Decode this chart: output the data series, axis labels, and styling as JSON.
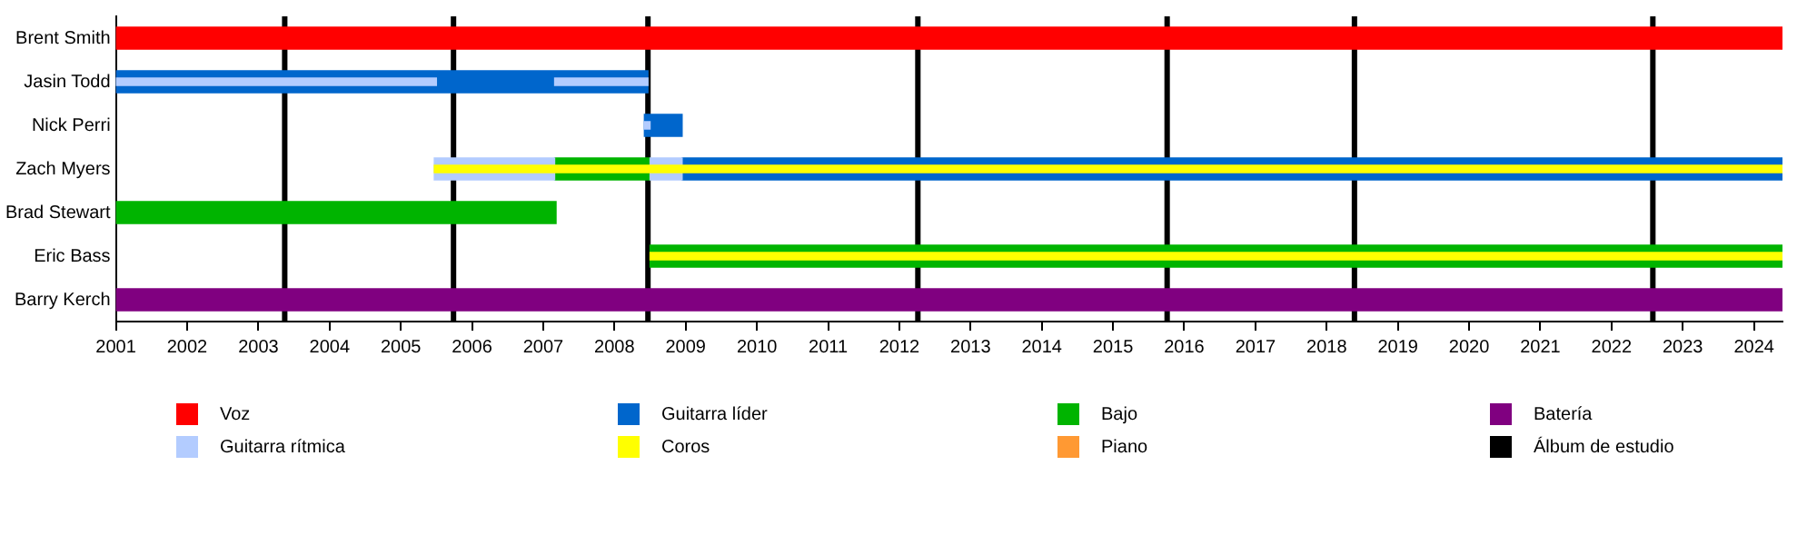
{
  "chart_data": {
    "type": "bar",
    "orientation": "horizontal",
    "categories": [
      "Brent Smith",
      "Jasin Todd",
      "Nick Perri",
      "Zach Myers",
      "Brad Stewart",
      "Eric Bass",
      "Barry Kerch"
    ],
    "series": [
      {
        "name": "Voz",
        "color": "#ff0000",
        "base": [
          2001,
          null,
          null,
          null,
          null,
          null,
          null
        ],
        "values": [
          23.4,
          null,
          null,
          null,
          null,
          null,
          null
        ]
      },
      {
        "name": "Guitarra líder",
        "color": "#0066cc",
        "base": [
          null,
          2001,
          2008.42,
          2008.95,
          null,
          null,
          null
        ],
        "values": [
          null,
          7.47,
          0.53,
          15.45,
          null,
          null,
          null
        ]
      },
      {
        "name": "Bajo",
        "color": "#00b400",
        "base": [
          null,
          null,
          null,
          2007.16,
          2001,
          2008.5,
          null
        ],
        "values": [
          null,
          null,
          null,
          1.34,
          6.18,
          15.9,
          null
        ]
      },
      {
        "name": "Batería",
        "color": "#800080",
        "base": [
          null,
          null,
          null,
          null,
          null,
          null,
          2001
        ],
        "values": [
          null,
          null,
          null,
          null,
          null,
          null,
          23.4
        ]
      },
      {
        "name": "Guitarra rítmica",
        "color": "#b3ccff",
        "base": [
          null,
          2001,
          2008.42,
          2005.47,
          null,
          null,
          null
        ],
        "values": [
          null,
          4.5,
          0.08,
          1.69,
          null,
          null,
          null
        ]
      },
      {
        "color": "#b3ccff",
        "base": [
          null,
          2007.16,
          null,
          2008.5,
          null,
          null,
          null
        ],
        "values": [
          null,
          1.31,
          null,
          0.45,
          null,
          null,
          null
        ]
      },
      {
        "name": "Coros",
        "color": "#ffff00",
        "base": [
          null,
          null,
          null,
          2005.47,
          null,
          2008.5,
          null
        ],
        "values": [
          null,
          null,
          null,
          18.93,
          null,
          15.9,
          null
        ]
      },
      {
        "name": "Piano",
        "color": "#ff9933",
        "base": [
          null,
          null,
          null,
          null,
          null,
          null,
          null
        ],
        "values": [
          null,
          null,
          null,
          null,
          null,
          null,
          null
        ]
      }
    ],
    "xlim": [
      2001,
      2024.4
    ],
    "xticks": [
      2001,
      2002,
      2003,
      2004,
      2005,
      2006,
      2007,
      2008,
      2009,
      2010,
      2011,
      2012,
      2013,
      2014,
      2015,
      2016,
      2017,
      2018,
      2019,
      2020,
      2021,
      2022,
      2023,
      2024
    ],
    "ref_lines": [
      {
        "axis": "x",
        "value": 2003.37,
        "label": "Álbum de estudio",
        "color": "#000000"
      },
      {
        "axis": "x",
        "value": 2005.74,
        "color": "#000000"
      },
      {
        "axis": "x",
        "value": 2008.47,
        "color": "#000000"
      },
      {
        "axis": "x",
        "value": 2012.26,
        "color": "#000000"
      },
      {
        "axis": "x",
        "value": 2015.76,
        "color": "#000000"
      },
      {
        "axis": "x",
        "value": 2018.39,
        "color": "#000000"
      },
      {
        "axis": "x",
        "value": 2022.58,
        "color": "#000000"
      }
    ],
    "grid": false,
    "legend": "bottom"
  }
}
